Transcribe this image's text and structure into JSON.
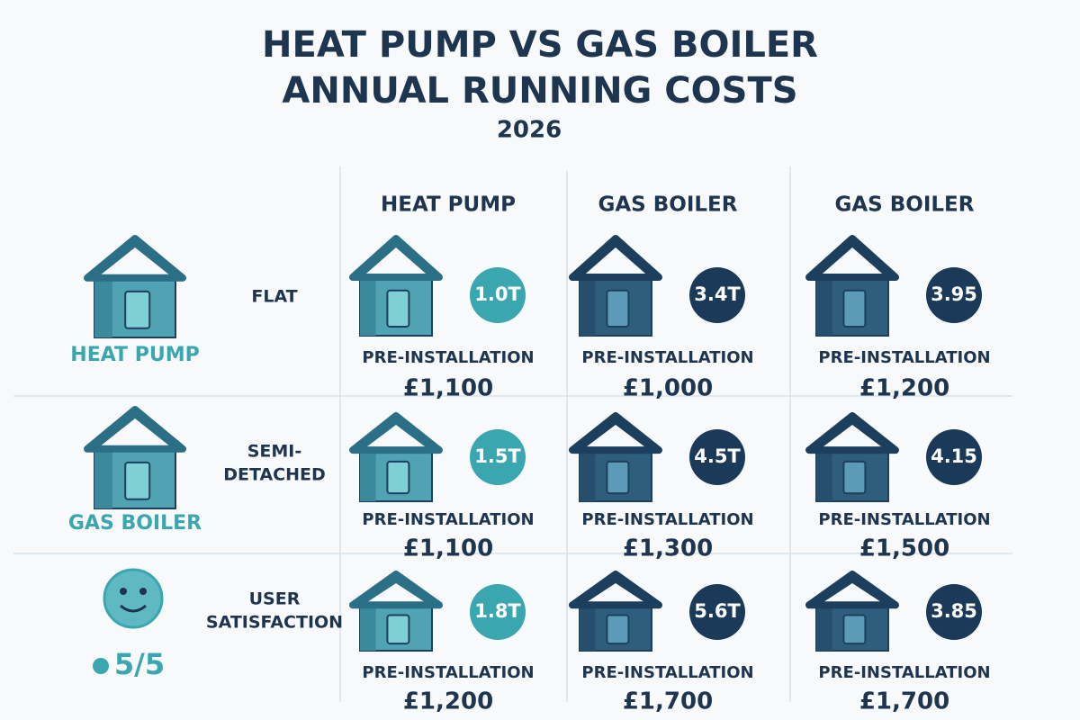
{
  "header": {
    "title_lines": [
      "HEAT PUMP VS GAS BOILER",
      "ANNUAL RUNNING COSTS"
    ],
    "subtitle": "2026"
  },
  "table": {
    "columns": [
      "HEAT PUMP",
      "GAS BOILER",
      "GAS BOILER"
    ],
    "rows": [
      {
        "side_caption": "HEAT PUMP",
        "label_lines": [
          "FLAT"
        ],
        "cells": [
          {
            "badge": "1.0T",
            "caption": "PRE-INSTALLATION",
            "price": "£1,100"
          },
          {
            "badge": "3.4T",
            "caption": "PRE-INSTALLATION",
            "price": "£1,000"
          },
          {
            "badge": "3.95",
            "caption": "PRE-INSTALLATION",
            "price": "£1,200"
          }
        ]
      },
      {
        "side_caption": "GAS BOILER",
        "label_lines": [
          "SEMI-",
          "DETACHED"
        ],
        "cells": [
          {
            "badge": "1.5T",
            "caption": "PRE-INSTALLATION",
            "price": "£1,100"
          },
          {
            "badge": "4.5T",
            "caption": "PRE-INSTALLATION",
            "price": "£1,300"
          },
          {
            "badge": "4.15",
            "caption": "PRE-INSTALLATION",
            "price": "£1,500"
          }
        ]
      },
      {
        "side_caption": "5/5",
        "label_lines": [
          "USER",
          "SATISFACTION"
        ],
        "cells": [
          {
            "badge": "1.8T",
            "caption": "PRE-INSTALLATION",
            "price": "£1,200"
          },
          {
            "badge": "5.6T",
            "caption": "PRE-INSTALLATION",
            "price": "£1,700"
          },
          {
            "badge": "3.85",
            "caption": "PRE-INSTALLATION",
            "price": "£1,700"
          }
        ]
      }
    ]
  }
}
